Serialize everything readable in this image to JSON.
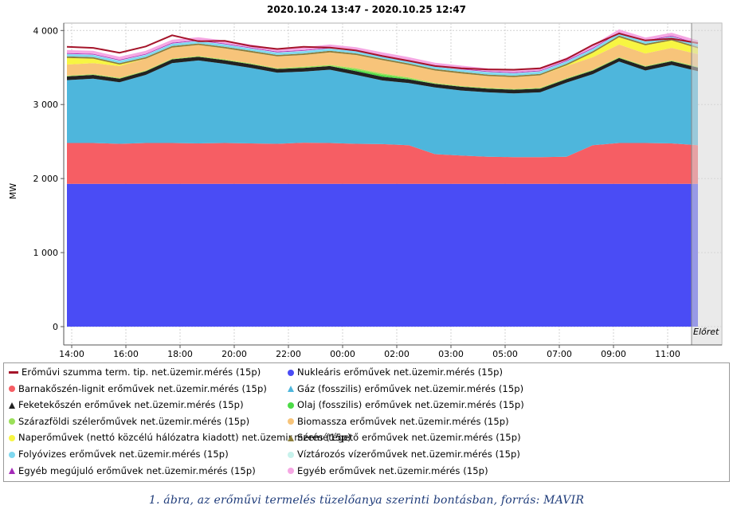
{
  "chart_data": {
    "type": "area",
    "stacked": true,
    "title": "2020.10.24 13:47 - 2020.10.25 12:47",
    "xlabel": "",
    "ylabel": "MW",
    "ylim": [
      0,
      4100
    ],
    "yticks": [
      0,
      1000,
      2000,
      3000,
      4000
    ],
    "ytick_labels": [
      "0",
      "1 000",
      "2 000",
      "3 000",
      "4 000"
    ],
    "xtick_labels": [
      "14:00",
      "16:00",
      "18:00",
      "20:00",
      "22:00",
      "00:00",
      "02:00",
      "03:00",
      "05:00",
      "07:00",
      "09:00",
      "11:00"
    ],
    "grid": true,
    "forecast_label": "Előret",
    "series": [
      {
        "name": "Nukleáris erőművek net.üzemir.mérés (15p)",
        "color": "#4a4cf5",
        "values": [
          1930,
          1930,
          1930,
          1930,
          1930,
          1930,
          1930,
          1930,
          1930,
          1930,
          1930,
          1930,
          1930,
          1930,
          1930,
          1930,
          1930,
          1930,
          1930,
          1930,
          1930,
          1930,
          1930,
          1930,
          1930
        ]
      },
      {
        "name": "Barnakőszén-lignit erőművek net.üzemir.mérés (15p)",
        "color": "#f65e64",
        "values": [
          550,
          550,
          540,
          550,
          550,
          545,
          550,
          545,
          540,
          555,
          550,
          540,
          535,
          520,
          400,
          380,
          365,
          360,
          360,
          365,
          520,
          550,
          550,
          545,
          520
        ]
      },
      {
        "name": "Gáz (fosszilis) erőművek net.üzemir.mérés (15p)",
        "color": "#4eb6dc",
        "values": [
          850,
          870,
          830,
          920,
          1080,
          1120,
          1070,
          1020,
          960,
          960,
          990,
          930,
          860,
          840,
          900,
          880,
          870,
          860,
          875,
          1000,
          960,
          1100,
          980,
          1060,
          1000
        ]
      },
      {
        "name": "Feketekőszén erőművek net.üzemir.mérés (15p)",
        "color": "#222222",
        "values": [
          50,
          50,
          50,
          50,
          50,
          50,
          50,
          50,
          50,
          50,
          50,
          50,
          50,
          50,
          50,
          50,
          50,
          50,
          50,
          50,
          50,
          50,
          50,
          50,
          50
        ]
      },
      {
        "name": "Olaj (fosszilis) erőművek net.üzemir.mérés (15p)",
        "color": "#4cdb47",
        "values": [
          0,
          0,
          0,
          0,
          0,
          0,
          0,
          0,
          0,
          0,
          0,
          20,
          25,
          10,
          0,
          0,
          0,
          0,
          0,
          0,
          0,
          0,
          0,
          0,
          0
        ]
      },
      {
        "name": "Szárazföldi szélerőművek net.üzemir.mérés (15p)",
        "color": "#9be05a",
        "values": [
          10,
          10,
          10,
          10,
          10,
          10,
          10,
          10,
          10,
          15,
          15,
          20,
          20,
          15,
          10,
          10,
          10,
          10,
          10,
          10,
          10,
          10,
          10,
          10,
          10
        ]
      },
      {
        "name": "Biomassza erőművek net.üzemir.mérés (15p)",
        "color": "#f7c47a",
        "values": [
          150,
          150,
          160,
          160,
          150,
          150,
          150,
          150,
          160,
          160,
          170,
          180,
          180,
          170,
          170,
          170,
          160,
          160,
          170,
          165,
          170,
          170,
          170,
          170,
          170
        ]
      },
      {
        "name": "Naperőművek (nettó közcélú hálózatra kiadott) net.üzemir.mérés (15p)",
        "color": "#f7f542",
        "values": [
          90,
          60,
          20,
          0,
          0,
          0,
          0,
          0,
          0,
          0,
          0,
          0,
          0,
          0,
          0,
          0,
          0,
          0,
          0,
          10,
          60,
          100,
          110,
          100,
          80
        ]
      },
      {
        "name": "Szemétégető erőművek net.üzemir.mérés (15p)",
        "color": "#8b7d3a",
        "values": [
          20,
          20,
          20,
          20,
          20,
          20,
          20,
          20,
          20,
          20,
          20,
          20,
          20,
          20,
          20,
          20,
          20,
          20,
          20,
          20,
          20,
          20,
          20,
          20,
          20
        ]
      },
      {
        "name": "Folyóvizes erőművek net.üzemir.mérés (15p)",
        "color": "#7fd8f0",
        "values": [
          30,
          30,
          30,
          30,
          30,
          30,
          30,
          30,
          30,
          30,
          30,
          30,
          30,
          30,
          30,
          30,
          30,
          30,
          30,
          30,
          30,
          30,
          30,
          30,
          30
        ]
      },
      {
        "name": "Víztározós vízerőművek net.üzemir.mérés (15p)",
        "color": "#c7f2ec",
        "values": [
          5,
          5,
          5,
          5,
          5,
          5,
          5,
          5,
          5,
          5,
          5,
          5,
          5,
          5,
          5,
          5,
          5,
          5,
          5,
          5,
          5,
          5,
          5,
          5,
          5
        ]
      },
      {
        "name": "Egyéb megújuló erőművek net.üzemir.mérés (15p)",
        "color": "#a42ab8",
        "values": [
          10,
          10,
          10,
          10,
          10,
          10,
          10,
          10,
          10,
          10,
          10,
          10,
          10,
          10,
          10,
          10,
          10,
          10,
          10,
          10,
          10,
          10,
          10,
          10,
          10
        ]
      },
      {
        "name": "Egyéb erőművek net.üzemir.mérés (15p)",
        "color": "#f5a7e3",
        "values": [
          40,
          40,
          40,
          40,
          40,
          40,
          40,
          40,
          40,
          40,
          40,
          40,
          40,
          40,
          40,
          40,
          40,
          40,
          40,
          40,
          40,
          40,
          40,
          40,
          40
        ]
      }
    ],
    "total_series": {
      "name": "Erőművi szumma term. tip. net.üzemir.mérés (15p)",
      "color": "#a5142a",
      "values": [
        3780,
        3765,
        3700,
        3785,
        3935,
        3855,
        3860,
        3790,
        3750,
        3780,
        3770,
        3730,
        3655,
        3590,
        3520,
        3490,
        3475,
        3470,
        3490,
        3615,
        3805,
        3960,
        3865,
        3890,
        3830
      ]
    }
  },
  "legend": {
    "items": [
      {
        "label": "Erőművi szumma term. tip. net.üzemir.mérés (15p)",
        "color": "#a5142a",
        "marker": "line"
      },
      {
        "label": "Nukleáris erőművek net.üzemir.mérés (15p)",
        "color": "#4a4cf5",
        "marker": "circle"
      },
      {
        "label": "Barnakőszén-lignit erőművek net.üzemir.mérés (15p)",
        "color": "#f65e64",
        "marker": "circle"
      },
      {
        "label": "Gáz (fosszilis) erőművek net.üzemir.mérés (15p)",
        "color": "#4eb6dc",
        "marker": "tri"
      },
      {
        "label": "Feketekőszén erőművek net.üzemir.mérés (15p)",
        "color": "#222222",
        "marker": "tri"
      },
      {
        "label": "Olaj (fosszilis) erőművek net.üzemir.mérés (15p)",
        "color": "#4cdb47",
        "marker": "circle"
      },
      {
        "label": "Szárazföldi szélerőművek net.üzemir.mérés (15p)",
        "color": "#9be05a",
        "marker": "circle"
      },
      {
        "label": "Biomassza erőművek net.üzemir.mérés (15p)",
        "color": "#f7c47a",
        "marker": "circle"
      },
      {
        "label": "Naperőművek (nettó közcélú hálózatra kiadott) net.üzemir.mérés (15p)",
        "color": "#f7f542",
        "marker": "circle"
      },
      {
        "label": "Szemétégető erőművek net.üzemir.mérés (15p)",
        "color": "#8b7d3a",
        "marker": "tri"
      },
      {
        "label": "Folyóvizes erőművek net.üzemir.mérés (15p)",
        "color": "#7fd8f0",
        "marker": "circle"
      },
      {
        "label": "Víztározós vízerőművek net.üzemir.mérés (15p)",
        "color": "#c7f2ec",
        "marker": "circle"
      },
      {
        "label": "Egyéb megújuló erőművek net.üzemir.mérés (15p)",
        "color": "#a42ab8",
        "marker": "tri"
      },
      {
        "label": "Egyéb erőművek net.üzemir.mérés (15p)",
        "color": "#f5a7e3",
        "marker": "circle"
      }
    ]
  },
  "caption": "1. ábra, az erőművi termelés tüzelőanya szerinti bontásban, forrás: MAVIR"
}
